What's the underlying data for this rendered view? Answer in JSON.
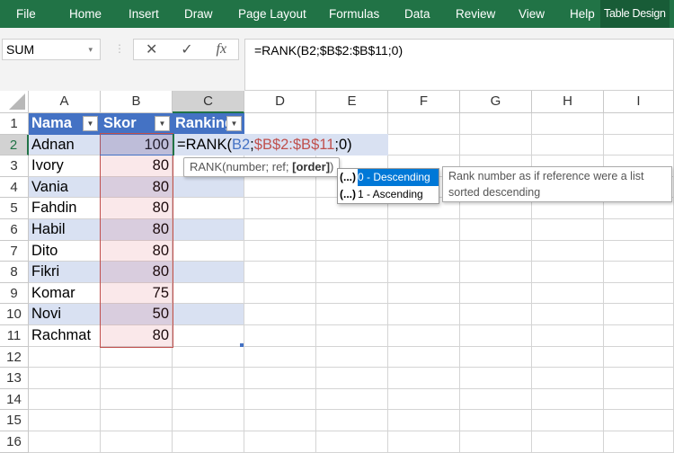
{
  "ribbon": {
    "tabs": [
      "File",
      "Home",
      "Insert",
      "Draw",
      "Page Layout",
      "Formulas",
      "Data",
      "Review",
      "View",
      "Help",
      "Table Design"
    ],
    "active": "Table Design",
    "color": "#217346"
  },
  "formula_bar": {
    "name_box": "SUM",
    "cancel": "✕",
    "enter": "✓",
    "fx": "fx",
    "formula": "=RANK(B2;$B$2:$B$11;0)"
  },
  "columns": [
    "A",
    "B",
    "C",
    "D",
    "E",
    "F",
    "G",
    "H",
    "I"
  ],
  "rows": [
    "1",
    "2",
    "3",
    "4",
    "5",
    "6",
    "7",
    "8",
    "9",
    "10",
    "11",
    "12",
    "13",
    "14",
    "15",
    "16"
  ],
  "table": {
    "headers": [
      "Nama",
      "Skor",
      "Ranking"
    ],
    "data": [
      [
        "Adnan",
        "100"
      ],
      [
        "Ivory",
        "80"
      ],
      [
        "Vania",
        "80"
      ],
      [
        "Fahdin",
        "80"
      ],
      [
        "Habil",
        "80"
      ],
      [
        "Dito",
        "80"
      ],
      [
        "Fikri",
        "80"
      ],
      [
        "Komar",
        "75"
      ],
      [
        "Novi",
        "50"
      ],
      [
        "Rachmat",
        "80"
      ]
    ],
    "header_color": "#4472c4",
    "band_color": "#d9e1f2"
  },
  "editing": {
    "prefix": "=RANK(",
    "ref1": "B2",
    "sep1": ";",
    "ref2": "$B$2:$B$11",
    "suffix": ";0)"
  },
  "tooltip": {
    "text": "RANK(number; ref; ",
    "bold": "[order]",
    "end": ")"
  },
  "autocomplete": [
    {
      "icon": "(...)",
      "label": "0 - Descending",
      "selected": true
    },
    {
      "icon": "(...)",
      "label": "1 - Ascending",
      "selected": false
    }
  ],
  "description": "Rank number as if reference were a list sorted descending"
}
